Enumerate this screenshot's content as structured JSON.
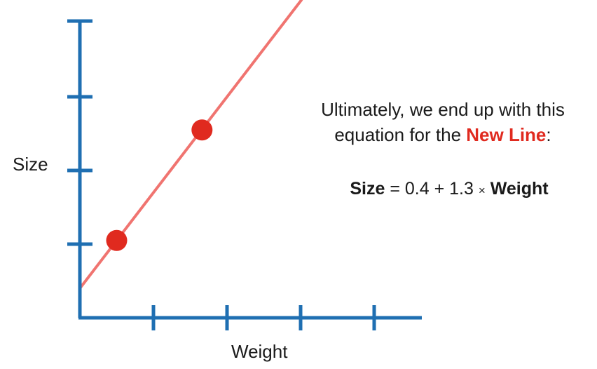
{
  "chart_data": {
    "type": "scatter",
    "xlabel": "Weight",
    "ylabel": "Size",
    "x_ticks": 4,
    "y_ticks": 4,
    "points": [
      {
        "x": 0.5,
        "y": 1.05
      },
      {
        "x": 1.66,
        "y": 2.55
      }
    ],
    "line": {
      "intercept": 0.4,
      "slope": 1.3,
      "color": "#f07470"
    },
    "colors": {
      "axis": "#1f6fb2",
      "point": "#e02a1f",
      "line": "#f07470"
    }
  },
  "caption": {
    "line1": "Ultimately, we end up with this",
    "line2_prefix": "equation for the ",
    "line2_highlight": "New Line",
    "line2_suffix": ":"
  },
  "equation": {
    "lhs": "Size",
    "middle": " = 0.4 + 1.3 ",
    "times": "×",
    "rhs": "Weight"
  }
}
